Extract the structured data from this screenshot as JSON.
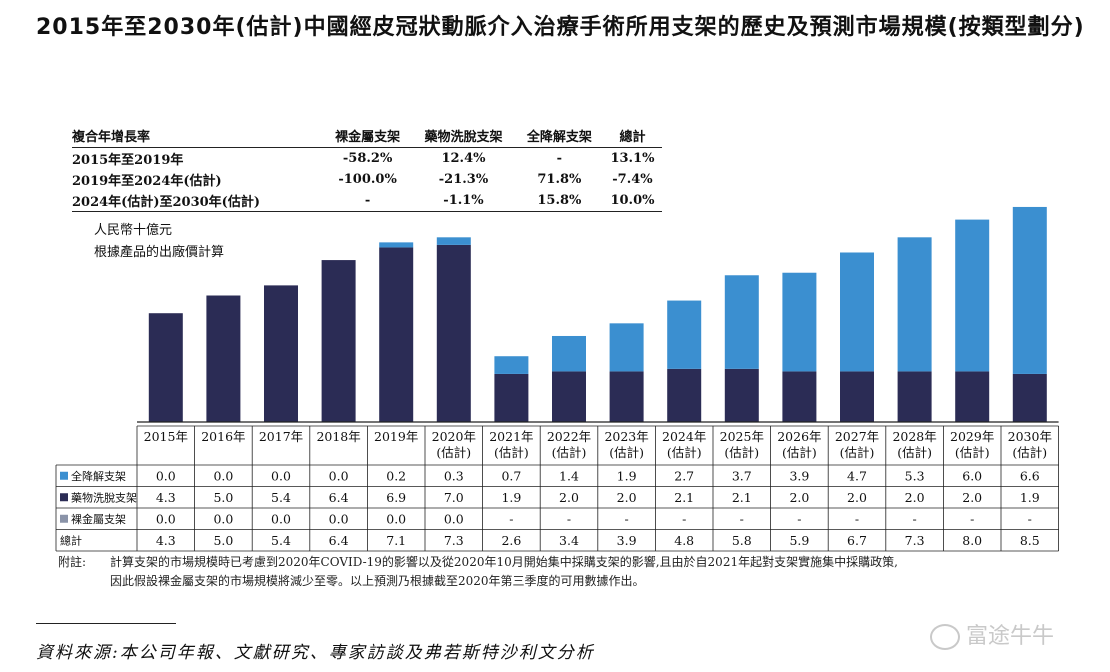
{
  "title": "2015年至2030年(估計)中國經皮冠狀動脈介入治療手術所用支架的歷史及預測市場規模(按類型劃分)",
  "cagr_table": {
    "headers": [
      "複合年增長率",
      "裸金屬支架",
      "藥物洗脫支架",
      "全降解支架",
      "總計"
    ],
    "rows": [
      [
        "2015年至2019年",
        "-58.2%",
        "12.4%",
        "-",
        "13.1%"
      ],
      [
        "2019年至2024年(估計)",
        "-100.0%",
        "-21.3%",
        "71.8%",
        "-7.4%"
      ],
      [
        "2024年(估計)至2030年(估計)",
        "-",
        "-1.1%",
        "15.8%",
        "10.0%"
      ]
    ]
  },
  "unit_note": [
    "人民幣十億元",
    "根據產品的出廠價計算"
  ],
  "colors": {
    "bioresorbable": "#3b8fd0",
    "drug_eluting": "#2b2c55",
    "bare_metal": "#8a93a8",
    "grid": "#222222"
  },
  "chart_data": {
    "type": "bar",
    "stacked": true,
    "categories": [
      "2015年",
      "2016年",
      "2017年",
      "2018年",
      "2019年",
      "2020年\n(估計)",
      "2021年\n(估計)",
      "2022年\n(估計)",
      "2023年\n(估計)",
      "2024年\n(估計)",
      "2025年\n(估計)",
      "2026年\n(估計)",
      "2027年\n(估計)",
      "2028年\n(估計)",
      "2029年\n(估計)",
      "2030年\n(估計)"
    ],
    "series": [
      {
        "name": "全降解支架",
        "values": [
          "0.0",
          "0.0",
          "0.0",
          "0.0",
          "0.2",
          "0.3",
          "0.7",
          "1.4",
          "1.9",
          "2.7",
          "3.7",
          "3.9",
          "4.7",
          "5.3",
          "6.0",
          "6.6"
        ]
      },
      {
        "name": "藥物洗脫支架",
        "values": [
          "4.3",
          "5.0",
          "5.4",
          "6.4",
          "6.9",
          "7.0",
          "1.9",
          "2.0",
          "2.0",
          "2.1",
          "2.1",
          "2.0",
          "2.0",
          "2.0",
          "2.0",
          "1.9"
        ]
      },
      {
        "name": "裸金屬支架",
        "values": [
          "0.0",
          "0.0",
          "0.0",
          "0.0",
          "0.0",
          "0.0",
          "-",
          "-",
          "-",
          "-",
          "-",
          "-",
          "-",
          "-",
          "-",
          "-"
        ]
      }
    ],
    "total_label": "總計",
    "totals": [
      "4.3",
      "5.0",
      "5.4",
      "6.4",
      "7.1",
      "7.3",
      "2.6",
      "3.4",
      "3.9",
      "4.8",
      "5.8",
      "5.9",
      "6.7",
      "7.3",
      "8.0",
      "8.5"
    ],
    "ylabel": "人民幣十億元",
    "ylim": [
      0,
      9
    ]
  },
  "footnote": {
    "label": "附註:",
    "line1": "計算支架的市場規模時已考慮到2020年COVID-19的影響以及從2020年10月開始集中採購支架的影響,且由於自2021年起對支架實施集中採購政策,",
    "line2": "因此假設裸金屬支架的市場規模將減少至零。以上預測乃根據截至2020年第三季度的可用數據作出。"
  },
  "source": "資料來源:本公司年報、文獻研究、專家訪談及弗若斯特沙利文分析",
  "watermark": "富途牛牛"
}
